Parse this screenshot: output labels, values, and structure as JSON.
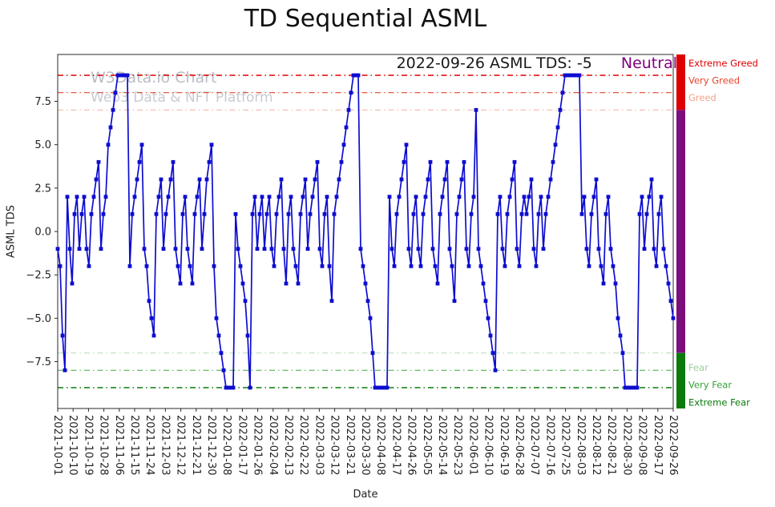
{
  "title": "TD Sequential ASML",
  "watermark": {
    "line1": "W3Data.io Chart",
    "line2": "Web3 Data & NFT Platform"
  },
  "annotation": {
    "date_text": "2022-09-26 ASML TDS: -5",
    "status": "Neutral",
    "status_color": "#800080"
  },
  "axes": {
    "x_label": "Date",
    "y_label": "ASML TDS",
    "y_tick_values": [
      7.5,
      5.0,
      2.5,
      0.0,
      -2.5,
      -5.0,
      -7.5
    ],
    "y_tick_labels": [
      "7.5",
      "5.0",
      "2.5",
      "0.0",
      "−2.5",
      "−5.0",
      "−7.5"
    ]
  },
  "chart_data": {
    "type": "line",
    "title": "TD Sequential ASML",
    "xlabel": "Date",
    "ylabel": "ASML TDS",
    "ylim": [
      -10.2,
      10.2
    ],
    "grid": false,
    "legend": "none",
    "x_tick_labels": [
      "2021-10-01",
      "2021-10-10",
      "2021-10-19",
      "2021-10-28",
      "2021-11-06",
      "2021-11-15",
      "2021-11-24",
      "2021-12-03",
      "2021-12-12",
      "2021-12-21",
      "2021-12-30",
      "2022-01-08",
      "2022-01-17",
      "2022-01-26",
      "2022-02-04",
      "2022-02-13",
      "2022-02-22",
      "2022-03-03",
      "2022-03-12",
      "2022-03-21",
      "2022-03-30",
      "2022-04-08",
      "2022-04-17",
      "2022-04-26",
      "2022-05-05",
      "2022-05-14",
      "2022-05-23",
      "2022-06-01",
      "2022-06-10",
      "2022-06-19",
      "2022-06-28",
      "2022-07-07",
      "2022-07-16",
      "2022-07-25",
      "2022-08-03",
      "2022-08-12",
      "2022-08-21",
      "2022-08-30",
      "2022-09-08",
      "2022-09-17",
      "2022-09-26"
    ],
    "series": [
      {
        "name": "ASML TDS",
        "color": "#0d0dd0",
        "marker": "square",
        "values": [
          -1,
          -2,
          -6,
          -8,
          2,
          -1,
          -3,
          1,
          2,
          -1,
          1,
          2,
          -1,
          -2,
          1,
          2,
          3,
          4,
          -1,
          1,
          2,
          5,
          6,
          7,
          8,
          9,
          9,
          9,
          9,
          9,
          -2,
          1,
          2,
          3,
          4,
          5,
          -1,
          -2,
          -4,
          -5,
          -6,
          1,
          2,
          3,
          -1,
          1,
          2,
          3,
          4,
          -1,
          -2,
          -3,
          1,
          2,
          -1,
          -2,
          -3,
          1,
          2,
          3,
          -1,
          1,
          3,
          4,
          5,
          -2,
          -5,
          -6,
          -7,
          -8,
          -9,
          -9,
          -9,
          -9,
          1,
          -1,
          -2,
          -3,
          -4,
          -6,
          -9,
          1,
          2,
          -1,
          1,
          2,
          -1,
          1,
          2,
          -1,
          -2,
          1,
          2,
          3,
          -1,
          -3,
          1,
          2,
          -1,
          -2,
          -3,
          1,
          2,
          3,
          -1,
          1,
          2,
          3,
          4,
          -1,
          -2,
          1,
          2,
          -2,
          -4,
          1,
          2,
          3,
          4,
          5,
          6,
          7,
          8,
          9,
          9,
          9,
          -1,
          -2,
          -3,
          -4,
          -5,
          -7,
          -9,
          -9,
          -9,
          -9,
          -9,
          -9,
          2,
          -1,
          -2,
          1,
          2,
          3,
          4,
          5,
          -1,
          -2,
          1,
          2,
          -1,
          -2,
          1,
          2,
          3,
          4,
          -1,
          -2,
          -3,
          1,
          2,
          3,
          4,
          -1,
          -2,
          -4,
          1,
          2,
          3,
          4,
          -1,
          -2,
          1,
          2,
          7,
          -1,
          -2,
          -3,
          -4,
          -5,
          -6,
          -7,
          -8,
          1,
          2,
          -1,
          -2,
          1,
          2,
          3,
          4,
          -1,
          -2,
          1,
          2,
          1,
          2,
          3,
          -1,
          -2,
          1,
          2,
          -1,
          1,
          2,
          3,
          4,
          5,
          6,
          7,
          8,
          9,
          9,
          9,
          9,
          9,
          9,
          9,
          1,
          2,
          -1,
          -2,
          1,
          2,
          3,
          -1,
          -2,
          -3,
          1,
          2,
          -1,
          -2,
          -3,
          -5,
          -6,
          -7,
          -9,
          -9,
          -9,
          -9,
          -9,
          -9,
          1,
          2,
          -1,
          1,
          2,
          3,
          -1,
          -2,
          1,
          2,
          -1,
          -2,
          -3,
          -4,
          -5
        ]
      }
    ],
    "reference_lines": [
      {
        "value": 9,
        "label": "Extreme Greed",
        "color": "#e00000",
        "label_color": "#e00000",
        "label_value": 9.7,
        "width": 1.5,
        "style": "dashdot"
      },
      {
        "value": 8,
        "label": "Very Greed",
        "color": "#e8442c",
        "label_color": "#e8442c",
        "label_value": 8.7,
        "width": 1.2,
        "style": "dashdot"
      },
      {
        "value": 7,
        "label": "Greed",
        "color": "#f6b9ab",
        "label_color": "#f2a48c",
        "label_value": 7.7,
        "width": 1.2,
        "style": "dashdot"
      },
      {
        "value": -7,
        "label": "Fear",
        "color": "#bedebe",
        "label_color": "#9fce9f",
        "label_value": -7.85,
        "width": 1.2,
        "style": "dashdot"
      },
      {
        "value": -8,
        "label": "Very Fear",
        "color": "#57b357",
        "label_color": "#36a336",
        "label_value": -8.85,
        "width": 1.2,
        "style": "dashdot"
      },
      {
        "value": -9,
        "label": "Extreme Fear",
        "color": "#0a7a0a",
        "label_color": "#0a7a0a",
        "label_value": -9.85,
        "width": 1.5,
        "style": "dashdot"
      }
    ],
    "sentiment_bar": [
      {
        "from": 7,
        "to": 10.2,
        "color": "#de0000"
      },
      {
        "from": -7,
        "to": 7,
        "color": "#7c0e7c"
      },
      {
        "from": -10.2,
        "to": -7,
        "color": "#0a7a0a"
      }
    ]
  }
}
